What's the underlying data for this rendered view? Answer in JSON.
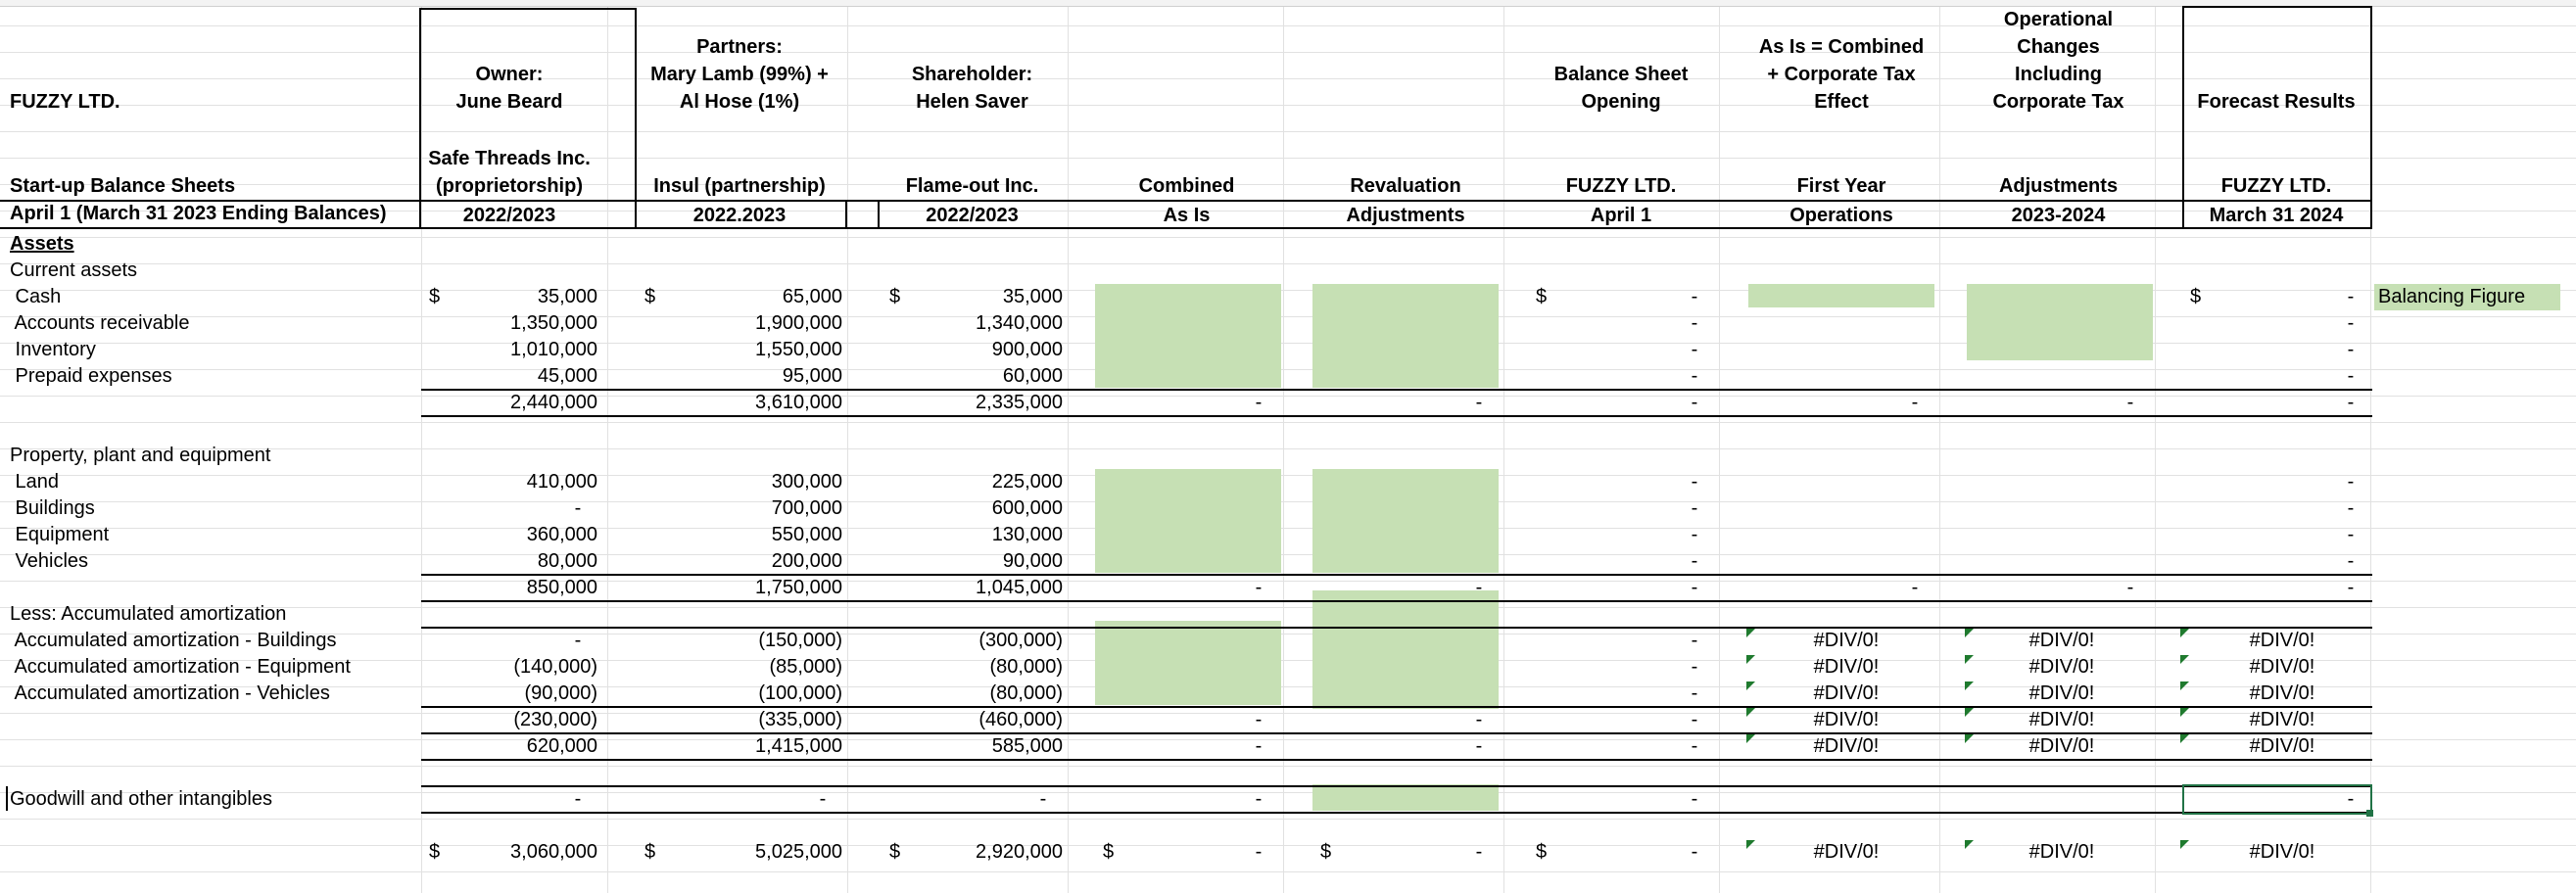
{
  "company": "FUZZY LTD.",
  "subtitle1": "Start-up Balance Sheets",
  "subtitle2": "April 1 (March 31 2023 Ending Balances)",
  "columns": [
    {
      "top": "Owner:\nJune Beard",
      "mid": "Safe Threads Inc.\n(proprietorship)",
      "bottom": "2022/2023"
    },
    {
      "top": "Partners:\nMary Lamb (99%) +\nAl Hose (1%)",
      "mid": "Insul (partnership)",
      "bottom": "2022.2023"
    },
    {
      "top": "Shareholder:\nHelen Saver",
      "mid": "Flame-out Inc.",
      "bottom": "2022/2023"
    },
    {
      "top": "",
      "mid": "Combined",
      "bottom": "As Is"
    },
    {
      "top": "",
      "mid": "Revaluation",
      "bottom": "Adjustments"
    },
    {
      "top": "Balance Sheet\nOpening",
      "mid": "FUZZY LTD.",
      "bottom": "April  1"
    },
    {
      "top": "As Is = Combined\n+ Corporate Tax\nEffect",
      "mid": "First Year",
      "bottom": "Operations"
    },
    {
      "top": "Operational\nChanges\nIncluding\nCorporate Tax",
      "mid": "Adjustments",
      "bottom": "2023-2024"
    },
    {
      "top": "Forecast Results",
      "mid": "FUZZY LTD.",
      "bottom": "March 31 2024"
    }
  ],
  "rows": [
    {
      "label": "Assets",
      "bold": true,
      "underline": true
    },
    {
      "label": "Current assets"
    },
    {
      "label": " Cash",
      "dollar": [
        true,
        true,
        true,
        false,
        false,
        true,
        false,
        false,
        true
      ],
      "v": [
        "35,000",
        "65,000",
        "35,000",
        "",
        "",
        "-",
        "",
        "",
        "-"
      ],
      "note": "Balancing Figure"
    },
    {
      "label": " Accounts receivable",
      "v": [
        "1,350,000",
        "1,900,000",
        "1,340,000",
        "",
        "",
        "-",
        "",
        "",
        "-"
      ]
    },
    {
      "label": " Inventory",
      "v": [
        "1,010,000",
        "1,550,000",
        "900,000",
        "",
        "",
        "-",
        "",
        "",
        "-"
      ]
    },
    {
      "label": " Prepaid expenses",
      "v": [
        "45,000",
        "95,000",
        "60,000",
        "",
        "",
        "-",
        "",
        "",
        "-"
      ]
    },
    {
      "label": "",
      "v": [
        "2,440,000",
        "3,610,000",
        "2,335,000",
        "-",
        "-",
        "-",
        "-",
        "-",
        "-"
      ]
    },
    {
      "label": ""
    },
    {
      "label": "Property, plant and equipment"
    },
    {
      "label": " Land",
      "v": [
        "410,000",
        "300,000",
        "225,000",
        "",
        "",
        "-",
        "",
        "",
        "-"
      ]
    },
    {
      "label": " Buildings",
      "v": [
        "-",
        "700,000",
        "600,000",
        "",
        "",
        "-",
        "",
        "",
        "-"
      ]
    },
    {
      "label": " Equipment",
      "v": [
        "360,000",
        "550,000",
        "130,000",
        "",
        "",
        "-",
        "",
        "",
        "-"
      ]
    },
    {
      "label": " Vehicles",
      "v": [
        "80,000",
        "200,000",
        "90,000",
        "",
        "",
        "-",
        "",
        "",
        "-"
      ]
    },
    {
      "label": "",
      "v": [
        "850,000",
        "1,750,000",
        "1,045,000",
        "-",
        "-",
        "-",
        "-",
        "-",
        "-"
      ]
    },
    {
      "label": "Less: Accumulated amortization"
    },
    {
      "label": " Accumulated amortization - Buildings",
      "v": [
        "-",
        "(150,000)",
        "(300,000)",
        "",
        "",
        "-",
        "#DIV/0!",
        "#DIV/0!",
        "#DIV/0!"
      ]
    },
    {
      "label": " Accumulated amortization - Equipment",
      "v": [
        "(140,000)",
        "(85,000)",
        "(80,000)",
        "",
        "",
        "-",
        "#DIV/0!",
        "#DIV/0!",
        "#DIV/0!"
      ]
    },
    {
      "label": " Accumulated amortization - Vehicles",
      "v": [
        "(90,000)",
        "(100,000)",
        "(80,000)",
        "",
        "",
        "-",
        "#DIV/0!",
        "#DIV/0!",
        "#DIV/0!"
      ]
    },
    {
      "label": "",
      "v": [
        "(230,000)",
        "(335,000)",
        "(460,000)",
        "-",
        "-",
        "-",
        "#DIV/0!",
        "#DIV/0!",
        "#DIV/0!"
      ]
    },
    {
      "label": "",
      "v": [
        "620,000",
        "1,415,000",
        "585,000",
        "-",
        "-",
        "-",
        "#DIV/0!",
        "#DIV/0!",
        "#DIV/0!"
      ]
    },
    {
      "label": ""
    },
    {
      "label": "Goodwill and other intangibles",
      "v": [
        "-",
        "-",
        "-",
        "-",
        "",
        "-",
        "",
        "",
        "-"
      ]
    },
    {
      "label": ""
    },
    {
      "label": "",
      "dollar": [
        true,
        true,
        true,
        true,
        true,
        true,
        false,
        false,
        false
      ],
      "v": [
        "3,060,000",
        "5,025,000",
        "2,920,000",
        "-",
        "-",
        "-",
        "#DIV/0!",
        "#DIV/0!",
        "#DIV/0!"
      ]
    }
  ],
  "colors": {
    "green_fill": "#c6e0b4",
    "selection": "#217346",
    "error_marker": "#1f7a2e"
  }
}
